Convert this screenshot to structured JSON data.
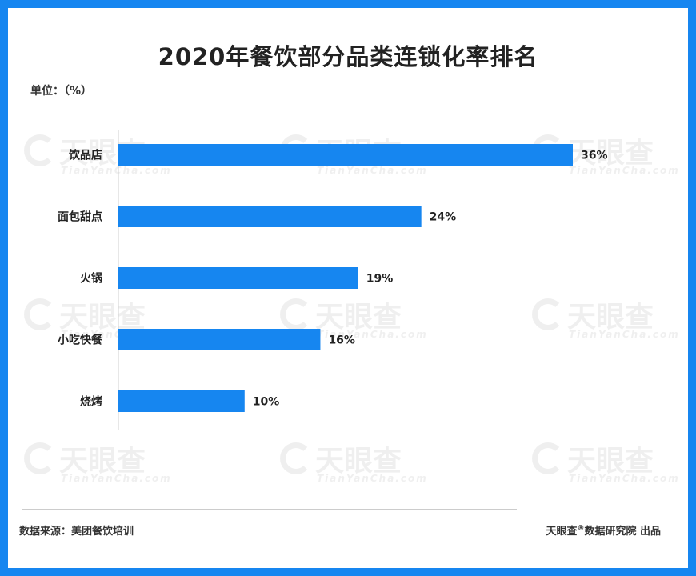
{
  "header": {
    "title": "2020年餐饮部分品类连锁化率排名",
    "unit": "单位：（%）"
  },
  "watermark": {
    "text": "天眼查",
    "sub": "TianYanCha.com"
  },
  "footer": {
    "source": "数据来源：美团餐饮培训",
    "credit_brand": "天眼查",
    "credit_mark": "®",
    "credit_rest": "数据研究院 出品"
  },
  "colors": {
    "bar": "#1686f0",
    "border": "#1686f0",
    "text": "#222222"
  },
  "chart_data": {
    "type": "bar",
    "orientation": "horizontal",
    "title": "2020年餐饮部分品类连锁化率排名",
    "xlabel": "",
    "ylabel": "",
    "unit": "%",
    "categories": [
      "饮品店",
      "面包甜点",
      "火锅",
      "小吃快餐",
      "烧烤"
    ],
    "values": [
      36,
      24,
      19,
      16,
      10
    ],
    "labels": [
      "36%",
      "24%",
      "19%",
      "16%",
      "10%"
    ],
    "xlim": [
      0,
      36
    ],
    "grid": false,
    "legend": "none"
  }
}
